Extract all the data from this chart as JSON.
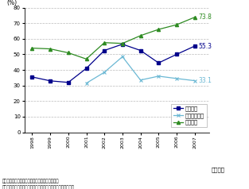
{
  "years": [
    1998,
    1999,
    2000,
    2001,
    2002,
    2003,
    2004,
    2005,
    2006,
    2007
  ],
  "denki": [
    35.5,
    33.0,
    32.0,
    41.0,
    52.5,
    56.5,
    52.5,
    44.5,
    50.0,
    55.3
  ],
  "joho": [
    null,
    null,
    null,
    31.5,
    38.5,
    48.5,
    33.5,
    36.0,
    34.5,
    33.1
  ],
  "yuso": [
    54.0,
    53.5,
    51.0,
    47.0,
    57.5,
    57.0,
    62.0,
    66.0,
    69.0,
    73.8
  ],
  "denki_color": "#00008B",
  "joho_color": "#6BB8D4",
  "yuso_color": "#2E8B22",
  "ylim": [
    0,
    80
  ],
  "yticks": [
    0,
    10,
    20,
    30,
    40,
    50,
    60,
    70,
    80
  ],
  "ylabel": "(%)",
  "xlabel": "（年度）",
  "legend_labels": [
    "電気機械",
    "情報通信機械",
    "輸送機械"
  ],
  "note1": "備考：現地調達比率＝現地調達額／仕入高総計。",
  "note2": "資料：経済産業省「海外事業活動基本調査」各年版から作成。",
  "end_label_denki": "55.3",
  "end_label_joho": "33.1",
  "end_label_yuso": "73.8"
}
